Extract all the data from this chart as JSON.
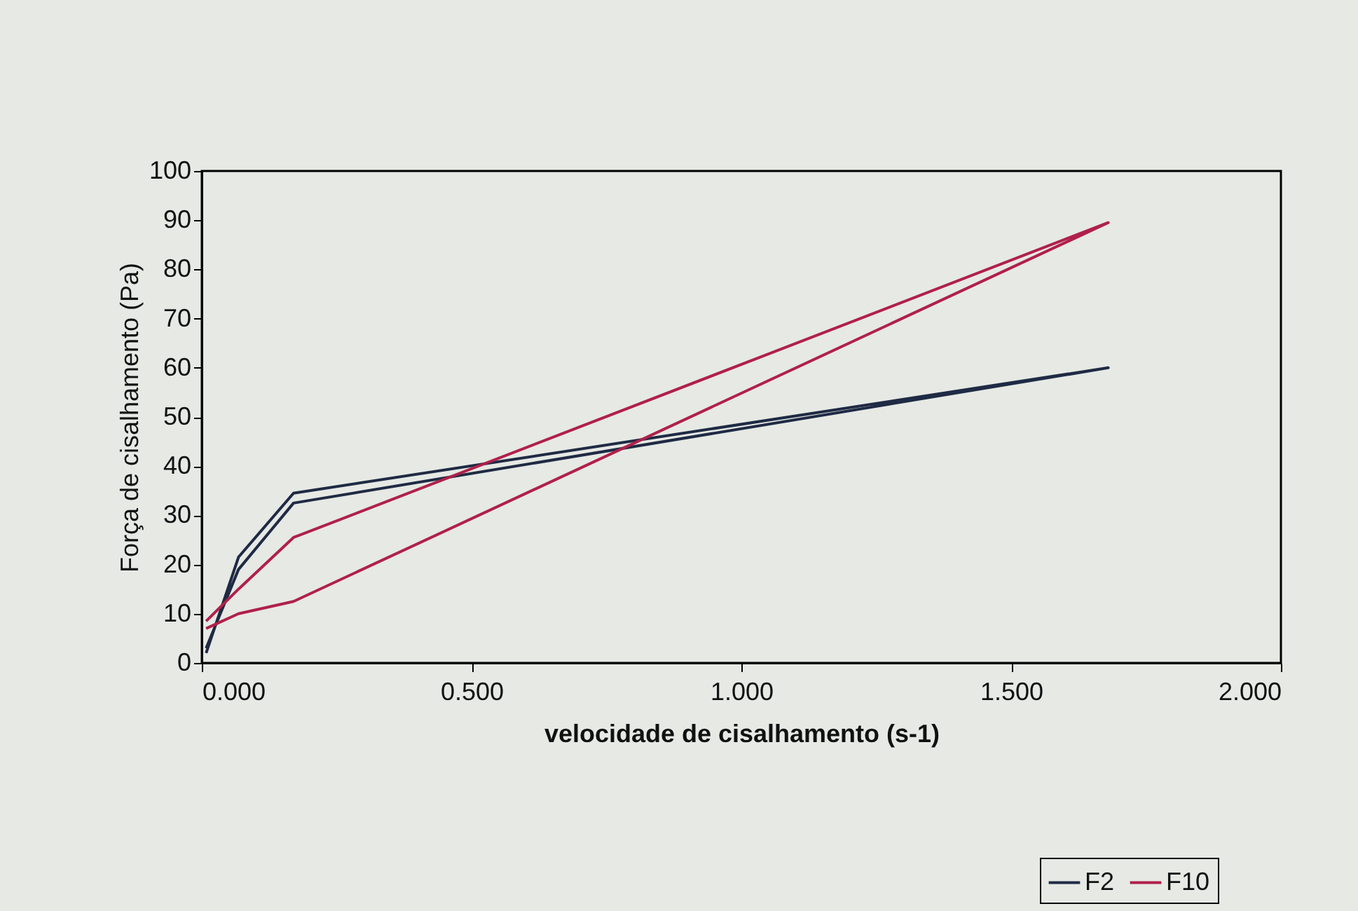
{
  "chart_data": {
    "type": "line",
    "xlabel": "velocidade de cisalhamento (s-1)",
    "ylabel": "Força de cisalhamento (Pa)",
    "xlim": [
      0,
      2
    ],
    "xticks": [
      {
        "value": 0,
        "label": "0.000"
      },
      {
        "value": 0.5,
        "label": "0.500"
      },
      {
        "value": 1,
        "label": "1.000"
      },
      {
        "value": 1.5,
        "label": "1.500"
      },
      {
        "value": 2,
        "label": "2.000"
      }
    ],
    "ylim": [
      0,
      100
    ],
    "yticks": [
      0,
      10,
      20,
      30,
      40,
      50,
      60,
      70,
      80,
      90,
      100
    ],
    "grid": false,
    "legend": "bottom right",
    "marker": "none",
    "line_style": "solid",
    "series": [
      {
        "name": "F2",
        "color": "#1f2a44",
        "x": [
          0.008,
          0.068,
          0.17,
          1.68,
          0.17,
          0.068,
          0.008
        ],
        "values": [
          3,
          19,
          32.5,
          60,
          34.5,
          21.5,
          2
        ]
      },
      {
        "name": "F10",
        "color": "#b0204a",
        "x": [
          0.008,
          0.068,
          0.17,
          1.68,
          0.17,
          0.068,
          0.008
        ],
        "values": [
          7,
          10,
          12.5,
          89.5,
          25.5,
          15,
          8.5
        ]
      }
    ]
  }
}
